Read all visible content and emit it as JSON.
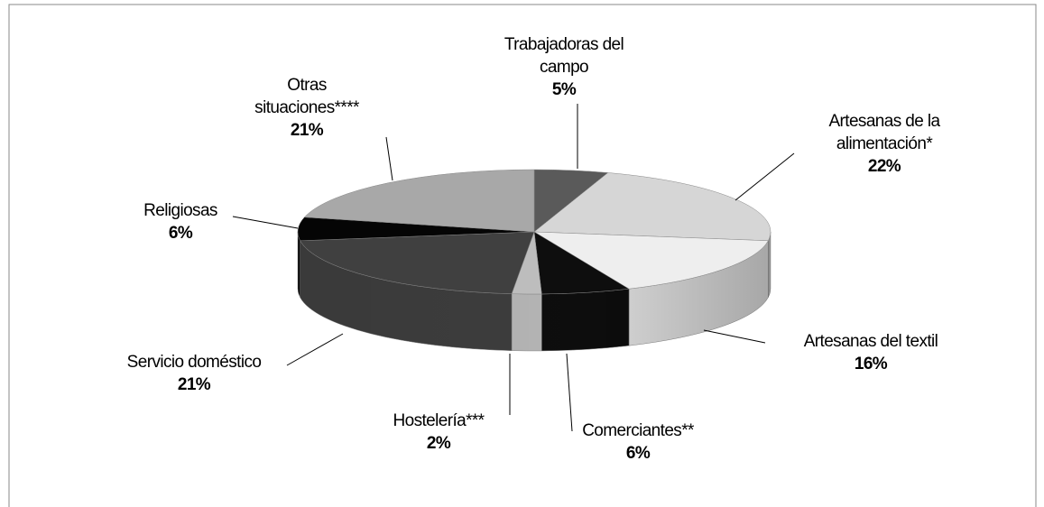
{
  "chart_data": {
    "type": "pie3d",
    "categories": [
      "Trabajadoras del campo",
      "Artesanas de la alimentación*",
      "Artesanas del textil",
      "Comerciantes**",
      "Hostelería***",
      "Servicio doméstico",
      "Religiosas",
      "Otras situaciones****"
    ],
    "values": [
      5,
      22,
      16,
      6,
      2,
      21,
      6,
      21
    ],
    "value_labels": [
      "5%",
      "22%",
      "16%",
      "6%",
      "2%",
      "21%",
      "6%",
      "21%"
    ],
    "colors": [
      "#5a5a5a",
      "#d6d6d6",
      "#eeeeee",
      "#0e0e0e",
      "#bdbdbd",
      "#404040",
      "#050505",
      "#a8a8a8"
    ]
  }
}
